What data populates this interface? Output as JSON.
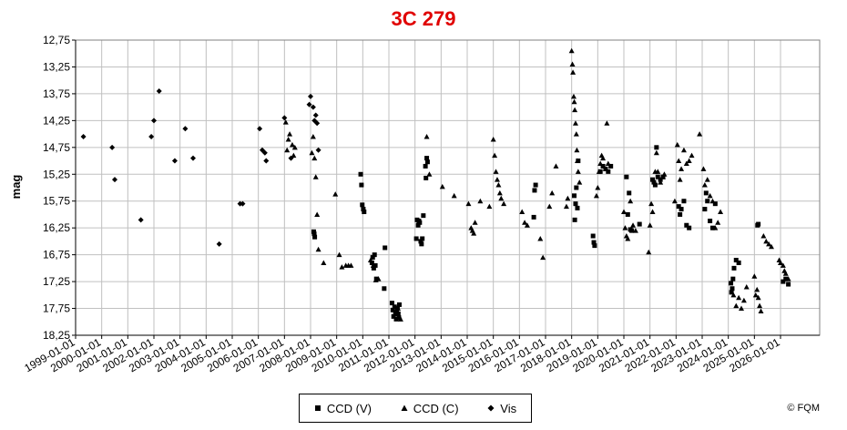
{
  "chart_data": {
    "type": "scatter",
    "title": "3C 279",
    "xlabel": "",
    "ylabel": "mag",
    "y_inverted": true,
    "ylim": [
      12.75,
      18.25
    ],
    "yticks": [
      "12,75",
      "13,25",
      "13,75",
      "14,25",
      "14,75",
      "15,25",
      "15,75",
      "16,25",
      "16,75",
      "17,25",
      "17,75",
      "18,25"
    ],
    "ytick_values": [
      12.75,
      13.25,
      13.75,
      14.25,
      14.75,
      15.25,
      15.75,
      16.25,
      16.75,
      17.25,
      17.75,
      18.25
    ],
    "xlim": [
      1999.0,
      2027.5
    ],
    "xticks": [
      "1999-01-01",
      "2000-01-01",
      "2001-01-01",
      "2002-01-01",
      "2003-01-01",
      "2004-01-01",
      "2005-01-01",
      "2006-01-01",
      "2007-01-01",
      "2008-01-01",
      "2009-01-01",
      "2010-01-01",
      "2011-01-01",
      "2012-01-01",
      "2013-01-01",
      "2014-01-01",
      "2015-01-01",
      "2016-01-01",
      "2017-01-01",
      "2018-01-01",
      "2019-01-01",
      "2020-01-01",
      "2021-01-01",
      "2022-01-01",
      "2023-01-01",
      "2024-01-01",
      "2025-01-01",
      "2026-01-01"
    ],
    "grid": true,
    "legend_position": "bottom-center",
    "series": [
      {
        "name": "CCD (V)",
        "marker": "square",
        "x": [
          2008.12,
          2008.14,
          2008.16,
          2009.92,
          2009.95,
          2009.98,
          2010.02,
          2010.05,
          2010.35,
          2010.38,
          2010.42,
          2010.45,
          2010.48,
          2010.52,
          2010.82,
          2010.85,
          2011.12,
          2011.15,
          2011.18,
          2011.22,
          2011.25,
          2011.28,
          2011.3,
          2011.33,
          2011.36,
          2011.4,
          2011.38,
          2012.05,
          2012.08,
          2012.12,
          2012.15,
          2012.18,
          2012.22,
          2012.25,
          2012.28,
          2012.32,
          2012.4,
          2012.42,
          2012.45,
          2012.48,
          2016.55,
          2016.58,
          2016.62,
          2018.1,
          2018.12,
          2018.15,
          2018.18,
          2018.22,
          2018.25,
          2018.82,
          2018.85,
          2018.88,
          2019.1,
          2019.2,
          2019.3,
          2019.4,
          2019.5,
          2020.1,
          2020.15,
          2020.2,
          2020.25,
          2020.3,
          2020.6,
          2021.1,
          2021.15,
          2021.2,
          2021.25,
          2021.3,
          2021.4,
          2021.5,
          2022.1,
          2022.15,
          2022.2,
          2022.3,
          2022.4,
          2022.5,
          2023.1,
          2023.15,
          2023.2,
          2023.3,
          2023.4,
          2023.5,
          2024.1,
          2024.12,
          2024.15,
          2024.18,
          2024.22,
          2024.3,
          2024.4,
          2025.12,
          2025.15,
          2026.1,
          2026.2,
          2026.3
        ],
        "y": [
          16.32,
          16.36,
          16.42,
          15.25,
          15.45,
          15.82,
          15.9,
          15.95,
          16.9,
          16.8,
          17.0,
          16.75,
          16.95,
          17.2,
          17.38,
          16.62,
          17.65,
          17.78,
          17.9,
          17.72,
          17.85,
          17.95,
          17.82,
          17.75,
          17.85,
          17.68,
          17.92,
          16.45,
          16.1,
          16.2,
          16.12,
          16.15,
          16.5,
          16.55,
          16.45,
          16.02,
          15.1,
          15.32,
          14.95,
          15.02,
          16.05,
          15.55,
          15.45,
          15.65,
          16.1,
          15.8,
          15.5,
          15.88,
          15.0,
          16.4,
          16.52,
          16.58,
          15.2,
          15.1,
          15.15,
          15.2,
          15.1,
          15.3,
          16.0,
          15.6,
          16.28,
          16.3,
          16.18,
          15.35,
          15.4,
          15.45,
          14.75,
          15.3,
          15.35,
          15.3,
          15.85,
          16.0,
          15.9,
          15.75,
          16.2,
          16.25,
          15.9,
          15.6,
          15.75,
          16.12,
          16.25,
          15.8,
          17.28,
          17.45,
          17.38,
          17.2,
          17.0,
          16.85,
          16.9,
          16.2,
          16.18,
          17.25,
          17.2,
          17.3
        ]
      },
      {
        "name": "CCD (C)",
        "marker": "triangle",
        "x": [
          2007.05,
          2007.1,
          2007.15,
          2007.2,
          2007.3,
          2007.35,
          2007.4,
          2008.05,
          2008.1,
          2008.15,
          2008.2,
          2008.25,
          2008.3,
          2008.5,
          2008.95,
          2009.1,
          2009.2,
          2009.35,
          2009.45,
          2009.55,
          2010.3,
          2010.4,
          2010.5,
          2010.6,
          2011.35,
          2011.4,
          2011.45,
          2012.45,
          2012.55,
          2013.05,
          2013.5,
          2014.05,
          2014.15,
          2014.2,
          2014.25,
          2014.3,
          2014.5,
          2014.85,
          2015.0,
          2015.05,
          2015.1,
          2015.15,
          2015.2,
          2015.25,
          2015.3,
          2015.4,
          2016.1,
          2016.2,
          2016.3,
          2016.8,
          2016.9,
          2017.15,
          2017.25,
          2017.4,
          2017.8,
          2017.85,
          2018.0,
          2018.03,
          2018.05,
          2018.08,
          2018.1,
          2018.12,
          2018.15,
          2018.18,
          2018.2,
          2018.22,
          2018.25,
          2018.3,
          2018.95,
          2019.0,
          2019.05,
          2019.1,
          2019.15,
          2019.2,
          2019.3,
          2019.35,
          2019.4,
          2020.0,
          2020.05,
          2020.1,
          2020.15,
          2020.25,
          2020.35,
          2020.45,
          2020.95,
          2021.0,
          2021.05,
          2021.1,
          2021.2,
          2021.25,
          2021.3,
          2021.4,
          2021.5,
          2021.55,
          2021.95,
          2022.05,
          2022.1,
          2022.15,
          2022.2,
          2022.3,
          2022.4,
          2022.5,
          2022.6,
          2022.9,
          2023.05,
          2023.1,
          2023.2,
          2023.3,
          2023.4,
          2023.5,
          2023.6,
          2023.7,
          2024.2,
          2024.3,
          2024.4,
          2024.5,
          2024.6,
          2024.7,
          2025.0,
          2025.05,
          2025.1,
          2025.15,
          2025.2,
          2025.25,
          2025.35,
          2025.45,
          2025.55,
          2025.65,
          2025.95,
          2026.0,
          2026.1,
          2026.15,
          2026.2,
          2026.3
        ],
        "y": [
          14.28,
          14.8,
          14.6,
          14.5,
          14.7,
          14.9,
          14.75,
          14.85,
          14.55,
          14.95,
          15.3,
          16.0,
          16.65,
          16.9,
          15.62,
          16.75,
          16.98,
          16.95,
          16.95,
          16.95,
          16.85,
          16.95,
          17.22,
          17.2,
          17.75,
          17.9,
          17.95,
          14.55,
          15.25,
          15.48,
          15.65,
          15.8,
          16.25,
          16.3,
          16.35,
          16.15,
          15.75,
          15.85,
          14.6,
          14.9,
          15.2,
          15.35,
          15.45,
          15.6,
          15.7,
          15.8,
          15.95,
          16.15,
          16.2,
          16.45,
          16.8,
          15.85,
          15.6,
          15.1,
          15.85,
          15.7,
          12.95,
          13.2,
          13.35,
          13.8,
          13.9,
          14.05,
          14.3,
          14.5,
          14.8,
          15.0,
          15.2,
          15.4,
          15.65,
          15.5,
          15.2,
          15.05,
          14.9,
          14.95,
          15.15,
          14.3,
          15.05,
          15.95,
          16.25,
          16.4,
          16.45,
          15.75,
          16.2,
          16.3,
          16.7,
          16.2,
          15.8,
          15.95,
          15.2,
          14.85,
          15.2,
          15.4,
          15.3,
          15.25,
          15.75,
          14.7,
          15.0,
          15.35,
          15.15,
          14.8,
          15.05,
          15.0,
          14.9,
          14.5,
          15.15,
          15.45,
          15.35,
          15.65,
          15.75,
          16.25,
          16.15,
          15.95,
          17.5,
          17.7,
          17.55,
          17.75,
          17.6,
          17.35,
          17.15,
          17.5,
          17.4,
          17.55,
          17.7,
          17.8,
          16.4,
          16.5,
          16.55,
          16.6,
          16.85,
          16.9,
          16.95,
          17.05,
          17.1,
          17.2
        ]
      },
      {
        "name": "Vis",
        "marker": "diamond",
        "x": [
          1999.3,
          2000.4,
          2000.5,
          2001.5,
          2001.9,
          2002.0,
          2002.2,
          2002.8,
          2003.2,
          2003.5,
          2004.5,
          2005.3,
          2005.4,
          2006.05,
          2006.15,
          2006.25,
          2006.3,
          2007.0,
          2007.25,
          2007.95,
          2008.0,
          2008.1,
          2008.15,
          2008.2,
          2008.25,
          2008.3
        ],
        "y": [
          14.55,
          14.75,
          15.35,
          16.1,
          14.55,
          14.25,
          13.7,
          15.0,
          14.4,
          14.95,
          16.55,
          15.8,
          15.8,
          14.4,
          14.8,
          14.85,
          15.0,
          14.2,
          14.95,
          13.95,
          13.8,
          14.0,
          14.25,
          14.15,
          14.3,
          14.8
        ]
      }
    ]
  },
  "legend": {
    "items": [
      {
        "label": "CCD (V)"
      },
      {
        "label": "CCD (C)"
      },
      {
        "label": "Vis"
      }
    ]
  },
  "copyright": "© FQM",
  "colors": {
    "title": "#e00000",
    "grid": "#c0c0c0",
    "marker": "#000000",
    "plot_background": "#ffffff"
  }
}
